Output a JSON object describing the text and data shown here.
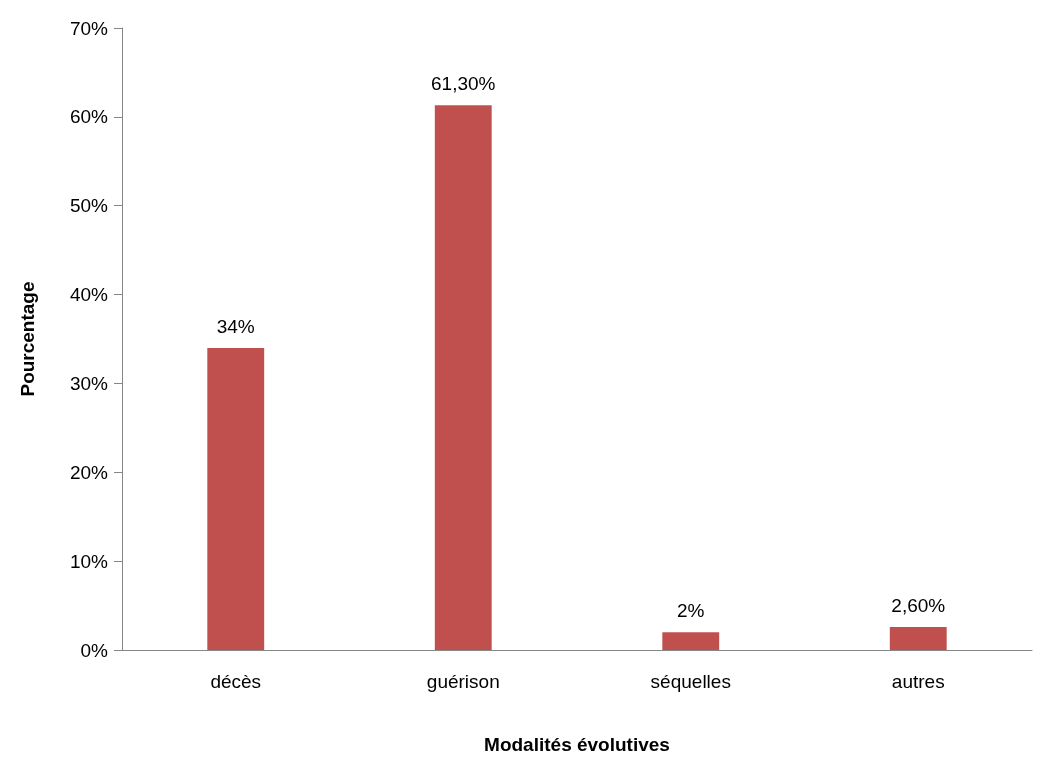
{
  "chart_data": {
    "type": "bar",
    "xlabel": "Modalités évolutives",
    "ylabel": "Pourcentage",
    "categories": [
      "décès",
      "guérison",
      "séquelles",
      "autres"
    ],
    "values": [
      34,
      61.3,
      2,
      2.6
    ],
    "value_labels": [
      "34%",
      "61,30%",
      "2%",
      "2,60%"
    ],
    "color": "#c0504d",
    "ylim": [
      0,
      70
    ],
    "yticks": [
      {
        "value": 0,
        "label": "0%"
      },
      {
        "value": 10,
        "label": "10%"
      },
      {
        "value": 20,
        "label": "20%"
      },
      {
        "value": 30,
        "label": "30%"
      },
      {
        "value": 40,
        "label": "40%"
      },
      {
        "value": 50,
        "label": "50%"
      },
      {
        "value": 60,
        "label": "60%"
      },
      {
        "value": 70,
        "label": "70%"
      }
    ],
    "grid": false
  }
}
